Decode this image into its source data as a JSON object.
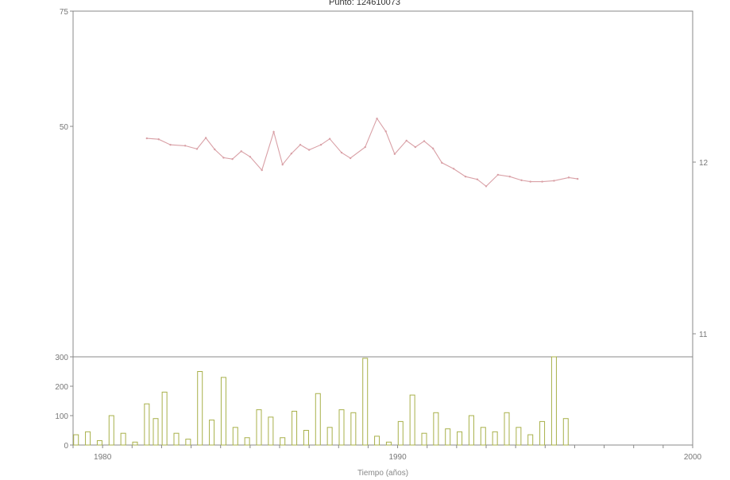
{
  "chart_data": [
    {
      "type": "line",
      "title": "Punto: 124610073",
      "xlabel": "",
      "ylabel": "",
      "xlim": [
        1979,
        2000
      ],
      "ylim": [
        0,
        75
      ],
      "y_ticks": [
        "75",
        "50"
      ],
      "y2_ticks": [
        "12",
        "11"
      ],
      "color": "#d9a0a6",
      "series": [
        {
          "x": [
            1981.5,
            1981.9,
            1982.3,
            1982.8,
            1983.2,
            1983.5,
            1983.8,
            1984.1,
            1984.4,
            1984.7,
            1985.0,
            1985.4,
            1985.8,
            1986.1,
            1986.4,
            1986.7,
            1987.0,
            1987.4,
            1987.7,
            1988.1,
            1988.4,
            1988.9,
            1989.3,
            1989.6,
            1989.9,
            1990.3,
            1990.6,
            1990.9,
            1991.2,
            1991.5,
            1991.9,
            1992.3,
            1992.7,
            1993.0,
            1993.4,
            1993.8,
            1994.2,
            1994.5,
            1994.9,
            1995.3,
            1995.8,
            1996.1
          ],
          "y": [
            47.4,
            47.2,
            46.0,
            45.8,
            45.1,
            47.5,
            45.0,
            43.2,
            42.9,
            44.6,
            43.4,
            40.5,
            48.8,
            41.7,
            44.1,
            46.0,
            44.9,
            46.0,
            47.3,
            44.3,
            43.1,
            45.5,
            51.7,
            48.9,
            44.0,
            46.9,
            45.5,
            46.8,
            45.2,
            42.1,
            40.8,
            39.1,
            38.5,
            37.0,
            39.5,
            39.1,
            38.3,
            38.0,
            38.0,
            38.2,
            38.9,
            38.6
          ]
        }
      ]
    },
    {
      "type": "bar",
      "title": "",
      "xlabel": "Tiempo (años)",
      "ylabel": "",
      "xlim": [
        1979,
        2000
      ],
      "ylim": [
        0,
        300
      ],
      "x_tick_labels": [
        "1980",
        "1990",
        "2000"
      ],
      "y_tick_labels": [
        "300",
        "200",
        "100",
        "0"
      ],
      "color": "#a8b04a",
      "x": [
        1979.1,
        1979.5,
        1979.9,
        1980.3,
        1980.7,
        1981.1,
        1981.5,
        1981.8,
        1982.1,
        1982.5,
        1982.9,
        1983.3,
        1983.7,
        1984.1,
        1984.5,
        1984.9,
        1985.3,
        1985.7,
        1986.1,
        1986.5,
        1986.9,
        1987.3,
        1987.7,
        1988.1,
        1988.5,
        1988.9,
        1989.3,
        1989.7,
        1990.1,
        1990.5,
        1990.9,
        1991.3,
        1991.7,
        1992.1,
        1992.5,
        1992.9,
        1993.3,
        1993.7,
        1994.1,
        1994.5,
        1994.9,
        1995.3,
        1995.7
      ],
      "values": [
        35,
        45,
        15,
        100,
        40,
        10,
        140,
        90,
        180,
        40,
        20,
        250,
        85,
        230,
        60,
        25,
        120,
        95,
        25,
        115,
        50,
        175,
        60,
        120,
        110,
        295,
        30,
        10,
        80,
        170,
        40,
        110,
        55,
        45,
        100,
        60,
        45,
        110,
        60,
        35,
        80,
        300,
        90
      ]
    }
  ]
}
